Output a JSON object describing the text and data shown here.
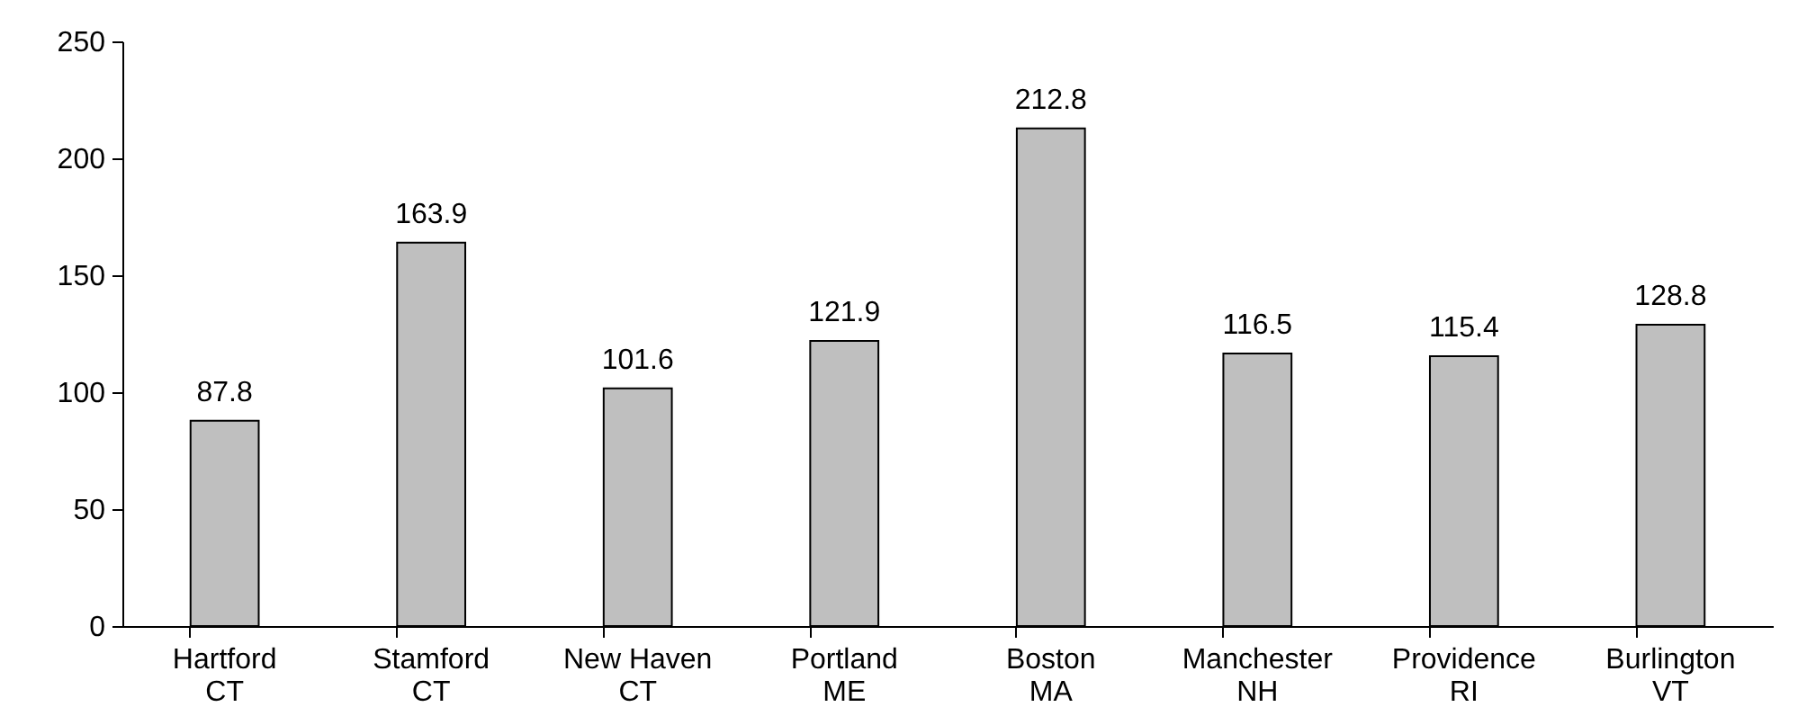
{
  "chart_data": {
    "type": "bar",
    "categories": [
      "Hartford\nCT",
      "Stamford\nCT",
      "New Haven\nCT",
      "Portland\nME",
      "Boston\nMA",
      "Manchester\nNH",
      "Providence\nRI",
      "Burlington\nVT"
    ],
    "values": [
      87.8,
      163.9,
      101.6,
      121.9,
      212.8,
      116.5,
      115.4,
      128.8
    ],
    "color": "#bfbfbf",
    "ylim": [
      0,
      250
    ],
    "yticks": [
      0,
      50,
      100,
      150,
      200,
      250
    ],
    "grid": false,
    "data_labels": true
  }
}
